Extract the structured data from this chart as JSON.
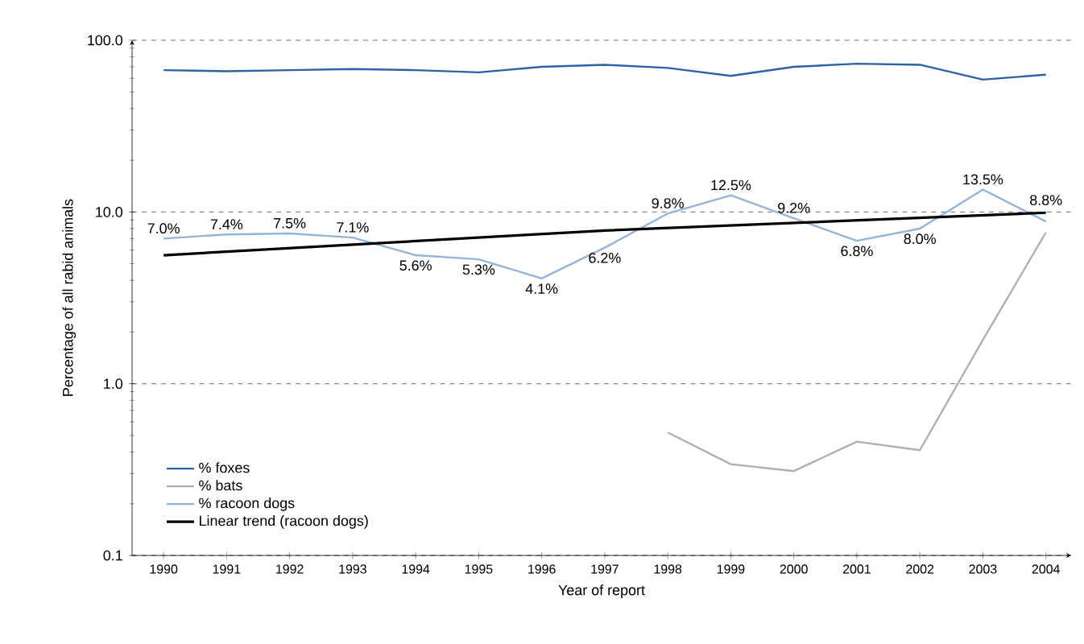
{
  "chart_data": {
    "type": "line",
    "xlabel": "Year of report",
    "ylabel": "Percentage of all rabid animals",
    "log": "y",
    "grid": "y",
    "legend": "bottom left",
    "x": [
      1990,
      1991,
      1992,
      1993,
      1994,
      1995,
      1996,
      1997,
      1998,
      1999,
      2000,
      2001,
      2002,
      2003,
      2004
    ],
    "xlim": [
      1989.5,
      2004.4
    ],
    "xticks": [
      1990,
      1991,
      1992,
      1993,
      1994,
      1995,
      1996,
      1997,
      1998,
      1999,
      2000,
      2001,
      2002,
      2003,
      2004
    ],
    "ylim": [
      0.1,
      100
    ],
    "yticks": [
      {
        "value": 0.1,
        "label": "0.1"
      },
      {
        "value": 1,
        "label": "1.0"
      },
      {
        "value": 10,
        "label": "10.0"
      },
      {
        "value": 100,
        "label": "100.0"
      }
    ],
    "series": [
      {
        "name": "% foxes",
        "color": "#2e62a8",
        "values": [
          67,
          66,
          67,
          68,
          67,
          65,
          70,
          72,
          69,
          62,
          70,
          73,
          72,
          59,
          63
        ]
      },
      {
        "name": "% bats",
        "color": "#b0b0b0",
        "values": [
          null,
          null,
          null,
          null,
          null,
          null,
          null,
          null,
          0.52,
          0.34,
          0.31,
          0.46,
          0.41,
          1.8,
          7.6
        ]
      },
      {
        "name": "% racoon dogs",
        "color": "#94b4d8",
        "values": [
          7.0,
          7.4,
          7.5,
          7.1,
          5.6,
          5.3,
          4.1,
          6.2,
          9.8,
          12.5,
          9.2,
          6.8,
          8.0,
          13.5,
          8.8
        ],
        "value_labels": [
          "7.0%",
          "7.4%",
          "7.5%",
          "7.1%",
          "5.6%",
          "5.3%",
          "4.1%",
          "6.2%",
          "9.8%",
          "12.5%",
          "9.2%",
          "6.8%",
          "8.0%",
          "13.5%",
          "8.8%"
        ]
      },
      {
        "name": "Linear trend (racoon dogs)",
        "color": "#000000",
        "x": [
          1990,
          1997,
          2004
        ],
        "values": [
          5.6,
          7.8,
          9.9
        ]
      }
    ]
  }
}
